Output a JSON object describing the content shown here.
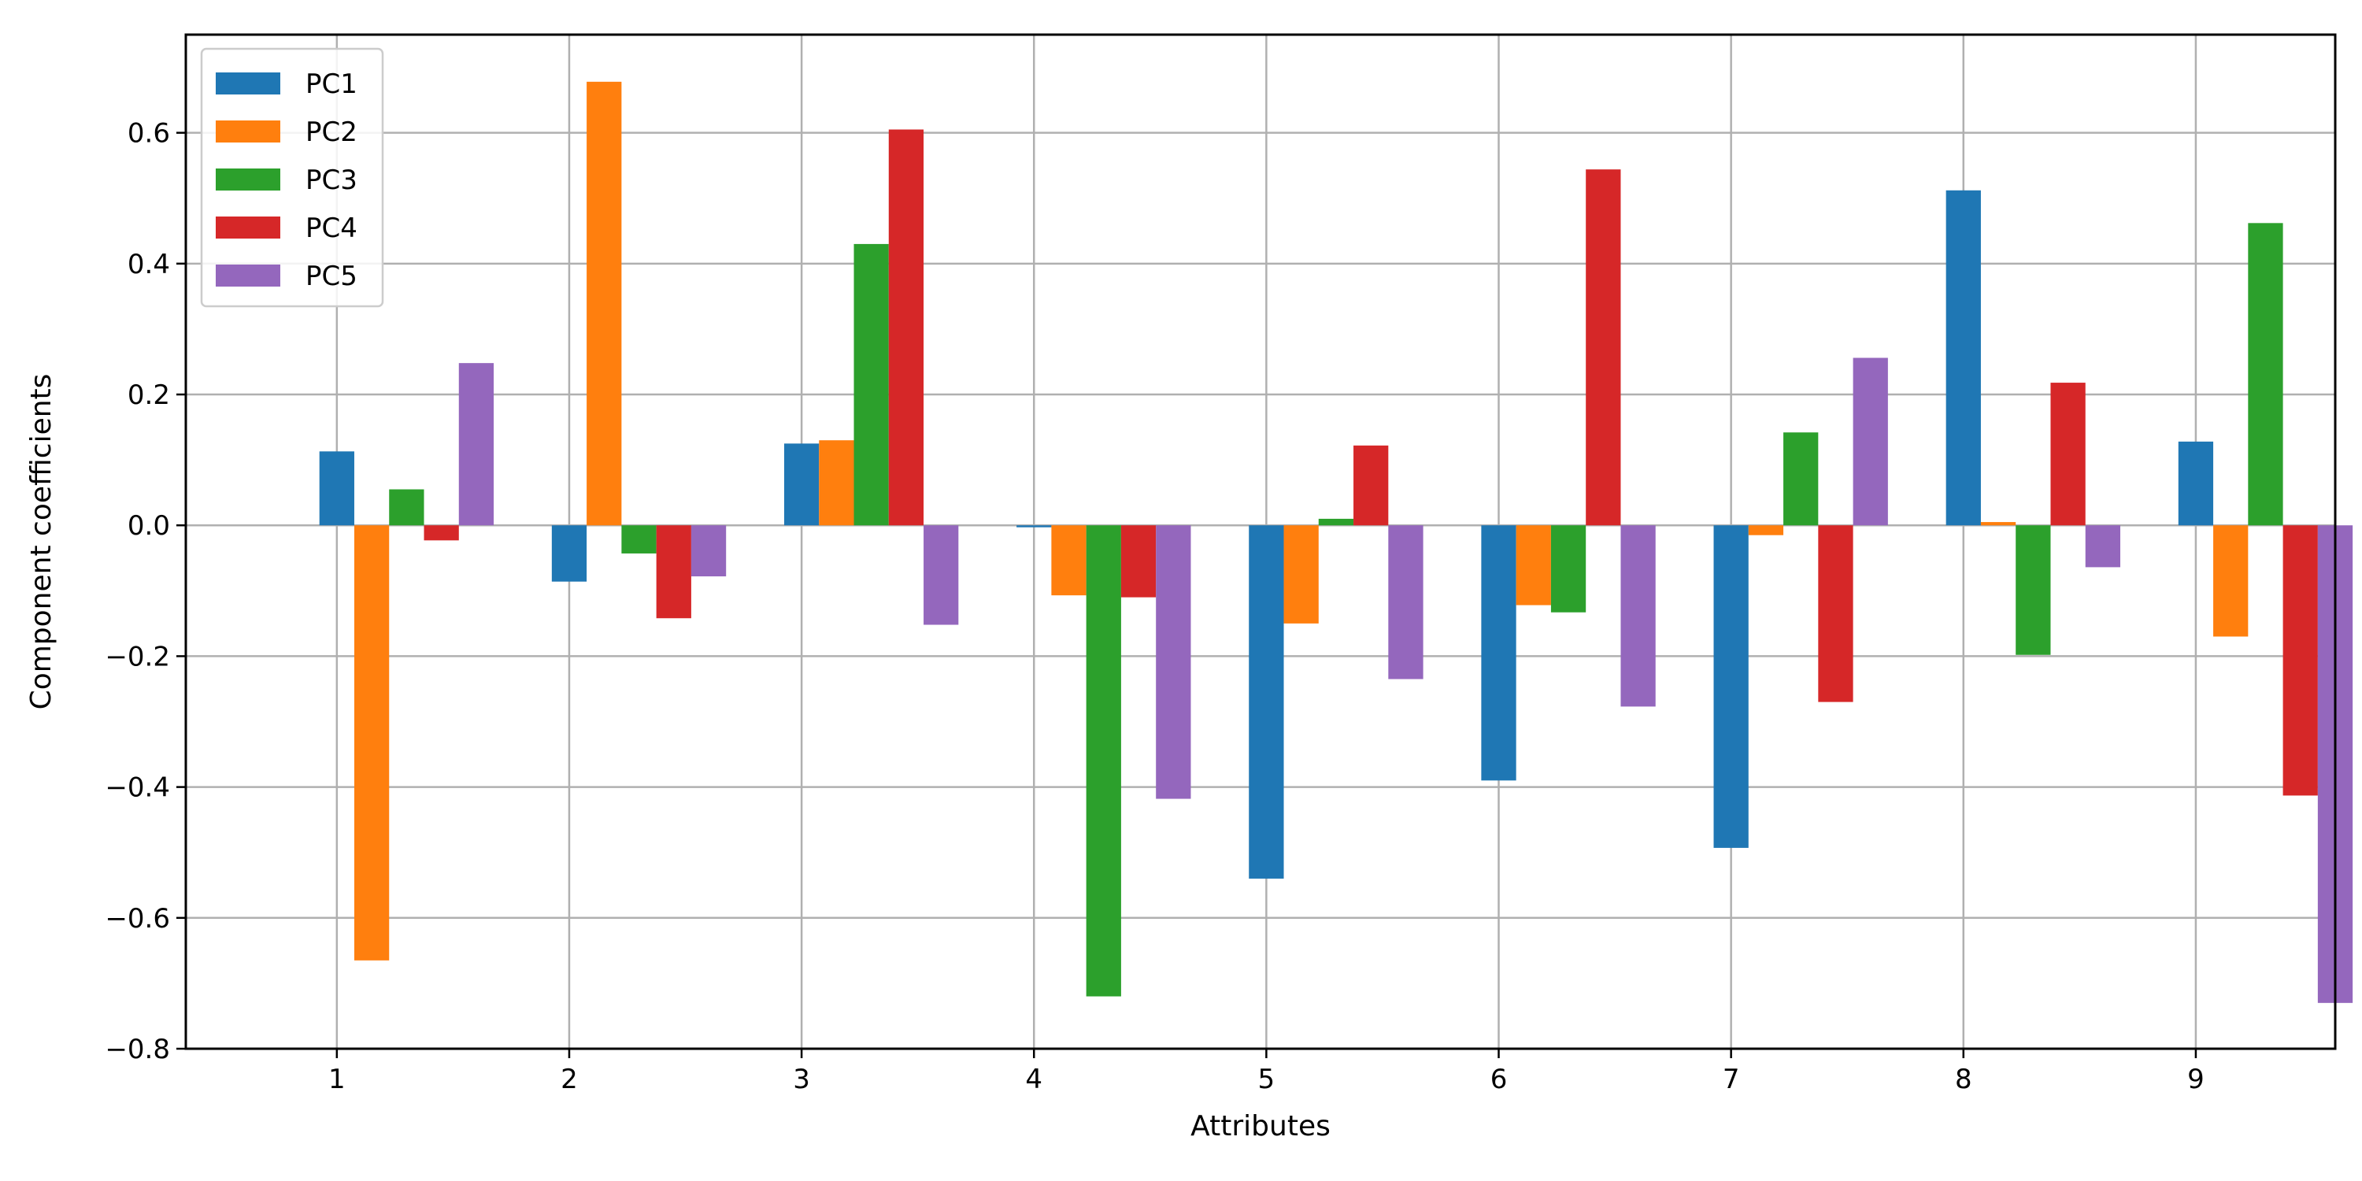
{
  "chart_data": {
    "type": "bar",
    "title": "",
    "xlabel": "Attributes",
    "ylabel": "Component coefficients",
    "categories": [
      "1",
      "2",
      "3",
      "4",
      "5",
      "6",
      "7",
      "8",
      "9"
    ],
    "x_tick_labels": [
      "1",
      "2",
      "3",
      "4",
      "5",
      "6",
      "7",
      "8",
      "9"
    ],
    "y_tick_labels": [
      "−0.8",
      "−0.6",
      "−0.4",
      "−0.2",
      "0.0",
      "0.2",
      "0.4",
      "0.6"
    ],
    "y_ticks": [
      -0.8,
      -0.6,
      -0.4,
      -0.2,
      0.0,
      0.2,
      0.4,
      0.6
    ],
    "ylim": [
      -0.8,
      0.75
    ],
    "grid": true,
    "legend_position": "top-left",
    "series": [
      {
        "name": "PC1",
        "color": "#1f77b4",
        "values": [
          0.113,
          -0.086,
          0.125,
          -0.003,
          -0.54,
          -0.39,
          -0.493,
          0.512,
          0.128
        ]
      },
      {
        "name": "PC2",
        "color": "#ff7f0e",
        "values": [
          -0.665,
          0.678,
          0.13,
          -0.107,
          -0.15,
          -0.122,
          -0.015,
          0.005,
          -0.17
        ]
      },
      {
        "name": "PC3",
        "color": "#2ca02c",
        "values": [
          0.055,
          -0.043,
          0.43,
          -0.72,
          0.01,
          -0.133,
          0.142,
          -0.198,
          0.462
        ]
      },
      {
        "name": "PC4",
        "color": "#d62728",
        "values": [
          -0.023,
          -0.142,
          0.605,
          -0.11,
          0.122,
          0.544,
          -0.27,
          0.218,
          -0.413
        ]
      },
      {
        "name": "PC5",
        "color": "#9467bd",
        "values": [
          0.248,
          -0.078,
          -0.152,
          -0.418,
          -0.235,
          -0.277,
          0.256,
          -0.064,
          -0.73
        ]
      }
    ]
  }
}
